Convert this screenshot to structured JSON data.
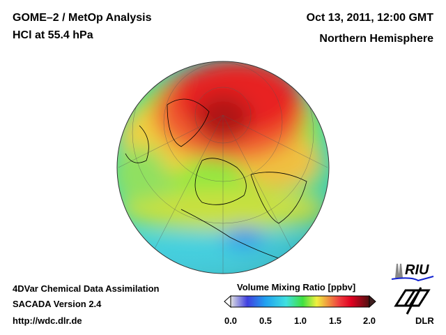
{
  "header": {
    "title_line1": "GOME–2 / MetOp Analysis",
    "title_line2": "HCl at 55.4 hPa",
    "date": "Oct 13, 2011, 12:00 GMT",
    "region": "Northern Hemisphere"
  },
  "footer": {
    "line1": "4DVar Chemical Data Assimilation",
    "line2": "SACADA Version 2.4",
    "url": "http://wdc.dlr.de"
  },
  "colorbar": {
    "title": "Volume Mixing Ratio [ppbv]",
    "ticks": [
      "0.0",
      "0.5",
      "1.0",
      "1.5",
      "2.0"
    ],
    "range": [
      0.0,
      2.0
    ],
    "colors": [
      "#d8d8d8",
      "#4040e0",
      "#20a0f0",
      "#40e0e0",
      "#40e040",
      "#f0f040",
      "#f04040",
      "#e00020",
      "#501010"
    ]
  },
  "logos": {
    "riu": "RIU",
    "dlr": "DLR"
  }
}
